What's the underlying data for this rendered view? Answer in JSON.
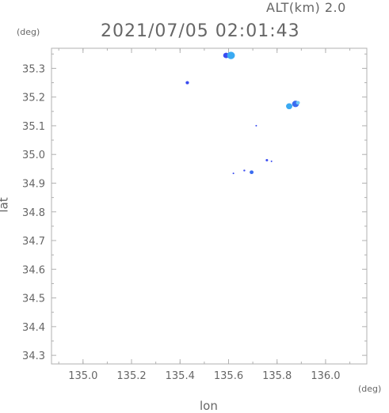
{
  "header": {
    "altitude": "ALT(km) 2.0",
    "timestamp": "2021/07/05 02:01:43"
  },
  "chart_data": {
    "type": "scatter",
    "title": "2021/07/05 02:01:43",
    "subtitle": "ALT(km) 2.0",
    "xlabel": "lon",
    "ylabel": "lat",
    "x_unit": "(deg)",
    "y_unit": "(deg)",
    "xlim": [
      134.87,
      136.17
    ],
    "ylim": [
      34.27,
      35.37
    ],
    "x_ticks": [
      "135.0",
      "135.2",
      "135.4",
      "135.6",
      "135.8",
      "136.0"
    ],
    "y_ticks": [
      "35.3",
      "35.2",
      "35.1",
      "35.0",
      "34.9",
      "34.8",
      "34.7",
      "34.6",
      "34.5",
      "34.4",
      "34.3"
    ],
    "grid": false,
    "colors": {
      "axis": "#b0b0b0",
      "text": "#666666",
      "echo_blue": "#3a4cf0",
      "echo_cyan": "#3aaaf2",
      "echo_light": "#6ec6f5"
    },
    "echoes": [
      {
        "lon": 135.59,
        "lat": 35.345,
        "size": 0.012,
        "color": "#3a4cf0"
      },
      {
        "lon": 135.61,
        "lat": 35.345,
        "size": 0.016,
        "color": "#3aaaf2"
      },
      {
        "lon": 135.43,
        "lat": 35.25,
        "size": 0.007,
        "color": "#3a4cf0"
      },
      {
        "lon": 135.85,
        "lat": 35.168,
        "size": 0.013,
        "color": "#3aaaf2"
      },
      {
        "lon": 135.876,
        "lat": 35.176,
        "size": 0.014,
        "color": "#3a6cf0"
      },
      {
        "lon": 135.886,
        "lat": 35.18,
        "size": 0.008,
        "color": "#6ec6f5"
      },
      {
        "lon": 135.714,
        "lat": 35.1,
        "size": 0.003,
        "color": "#3a4cf0"
      },
      {
        "lon": 135.758,
        "lat": 34.98,
        "size": 0.005,
        "color": "#3a4cf0"
      },
      {
        "lon": 135.777,
        "lat": 34.976,
        "size": 0.003,
        "color": "#3a4cf0"
      },
      {
        "lon": 135.665,
        "lat": 34.944,
        "size": 0.004,
        "color": "#3a4cf0"
      },
      {
        "lon": 135.695,
        "lat": 34.938,
        "size": 0.008,
        "color": "#3a6cf0"
      },
      {
        "lon": 135.62,
        "lat": 34.934,
        "size": 0.002,
        "color": "#3a4cf0"
      }
    ]
  }
}
